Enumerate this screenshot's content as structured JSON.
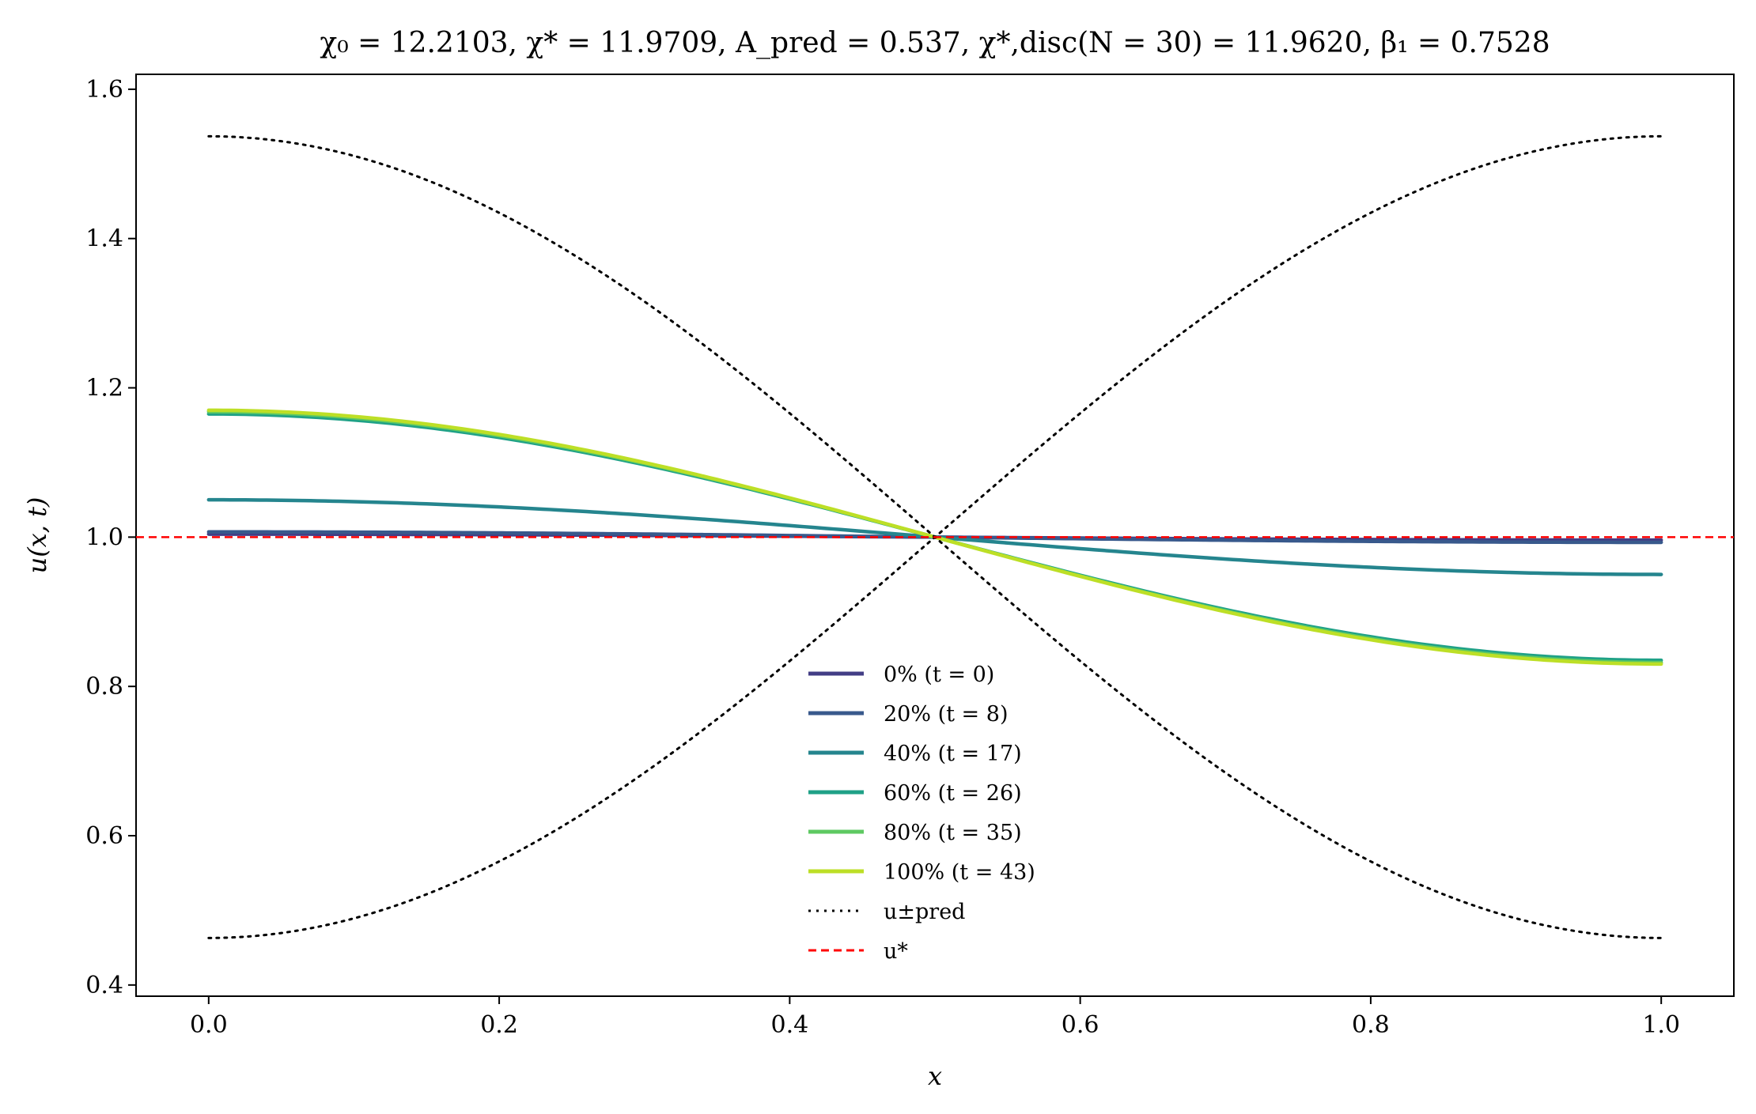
{
  "chart_data": {
    "type": "line",
    "title": "χ₀ = 12.2103,  χ* = 11.9709,  A_pred = 0.537,  χ*,disc(N = 30) = 11.9620,  β₁ = 0.7528",
    "xlabel": "x",
    "ylabel": "u(x, t)",
    "xlim": [
      -0.05,
      1.05
    ],
    "ylim": [
      0.385,
      1.62
    ],
    "xticks": [
      "0.0",
      "0.2",
      "0.4",
      "0.6",
      "0.8",
      "1.0"
    ],
    "yticks": [
      "0.4",
      "0.6",
      "0.8",
      "1.0",
      "1.2",
      "1.4",
      "1.6"
    ],
    "grid": false,
    "legend_position": "lower-center",
    "profile": "cos",
    "x_range": [
      0,
      1
    ],
    "center": 1.0,
    "series": [
      {
        "name": "0% (t = 0)",
        "color": "#433e85",
        "style": "solid",
        "amplitude": 0.004
      },
      {
        "name": "20% (t = 8)",
        "color": "#38598c",
        "style": "solid",
        "amplitude": 0.007
      },
      {
        "name": "40% (t = 17)",
        "color": "#25858e",
        "style": "solid",
        "amplitude": 0.05
      },
      {
        "name": "60% (t = 26)",
        "color": "#1fa187",
        "style": "solid",
        "amplitude": 0.165
      },
      {
        "name": "80% (t = 35)",
        "color": "#5ec962",
        "style": "solid",
        "amplitude": 0.168
      },
      {
        "name": "100% (t = 43)",
        "color": "#bddf26",
        "style": "solid",
        "amplitude": 0.17
      },
      {
        "name": "u±pred",
        "color": "#000000",
        "style": "dotted",
        "amplitude": 0.537,
        "pair": true
      },
      {
        "name": "u*",
        "color": "#ff0000",
        "style": "dashed",
        "value": 1.0,
        "full_width": true
      }
    ]
  }
}
